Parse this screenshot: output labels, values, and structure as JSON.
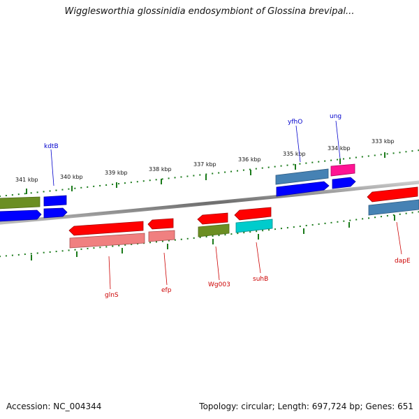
{
  "title": "Wigglesworthia glossinidia endosymbiont of Glossina brevipal...",
  "footer": {
    "accession": "Accession: NC_004344",
    "info": "Topology: circular; Length: 697,724 bp; Genes: 651"
  },
  "colors": {
    "tick_green": "#1a7a1a",
    "backbone": "#7a7a7a",
    "label_blue": "#0000cc",
    "label_red": "#cc0000",
    "red": "#ff0000",
    "pink_red": "#f08080",
    "blue": "#0000ff",
    "steel": "#4682b4",
    "olive": "#6b8e23",
    "magenta": "#ff1493",
    "cyan": "#00cccc"
  },
  "scale_labels": [
    {
      "text": "333 kbp",
      "kbp": 333
    },
    {
      "text": "334 kbp",
      "kbp": 334
    },
    {
      "text": "335 kbp",
      "kbp": 335
    },
    {
      "text": "336 kbp",
      "kbp": 336
    },
    {
      "text": "337 kbp",
      "kbp": 337
    },
    {
      "text": "338 kbp",
      "kbp": 338
    },
    {
      "text": "339 kbp",
      "kbp": 339
    },
    {
      "text": "340 kbp",
      "kbp": 340
    },
    {
      "text": "341 kbp",
      "kbp": 341
    }
  ],
  "gene_labels": {
    "top": [
      {
        "name": "kdtB",
        "color": "label_blue"
      },
      {
        "name": "yfhO",
        "color": "label_blue"
      },
      {
        "name": "ung",
        "color": "label_blue"
      }
    ],
    "bottom": [
      {
        "name": "glnS",
        "color": "label_red"
      },
      {
        "name": "efp",
        "color": "label_red"
      },
      {
        "name": "Wg003",
        "color": "label_red"
      },
      {
        "name": "suhB",
        "color": "label_red"
      },
      {
        "name": "dapE",
        "color": "label_red"
      }
    ]
  },
  "features": {
    "forward": [
      {
        "name": "olive-block-left",
        "color": "olive",
        "row": "outer"
      },
      {
        "name": "kdtB",
        "color": "blue",
        "row": "outer"
      },
      {
        "name": "blue-block-left",
        "color": "blue",
        "row": "inner"
      },
      {
        "name": "kdtB-inner",
        "color": "blue",
        "row": "inner"
      },
      {
        "name": "yfhO",
        "color": "steel",
        "row": "outer"
      },
      {
        "name": "ung",
        "color": "magenta",
        "row": "outer"
      },
      {
        "name": "yfhO-inner",
        "color": "blue",
        "row": "inner"
      },
      {
        "name": "ung-inner",
        "color": "blue",
        "row": "inner"
      }
    ],
    "reverse": [
      {
        "name": "glnS",
        "color": "red",
        "row": "inner"
      },
      {
        "name": "glnS-outer",
        "color": "pink_red",
        "row": "outer"
      },
      {
        "name": "efp",
        "color": "red",
        "row": "inner"
      },
      {
        "name": "efp-outer",
        "color": "pink_red",
        "row": "outer"
      },
      {
        "name": "Wg003",
        "color": "red",
        "row": "inner"
      },
      {
        "name": "Wg003-outer",
        "color": "olive",
        "row": "outer"
      },
      {
        "name": "suhB",
        "color": "red",
        "row": "inner"
      },
      {
        "name": "suhB-outer",
        "color": "cyan",
        "row": "outer"
      },
      {
        "name": "dapE",
        "color": "red",
        "row": "inner"
      },
      {
        "name": "dapE-outer",
        "color": "steel",
        "row": "outer"
      }
    ]
  }
}
